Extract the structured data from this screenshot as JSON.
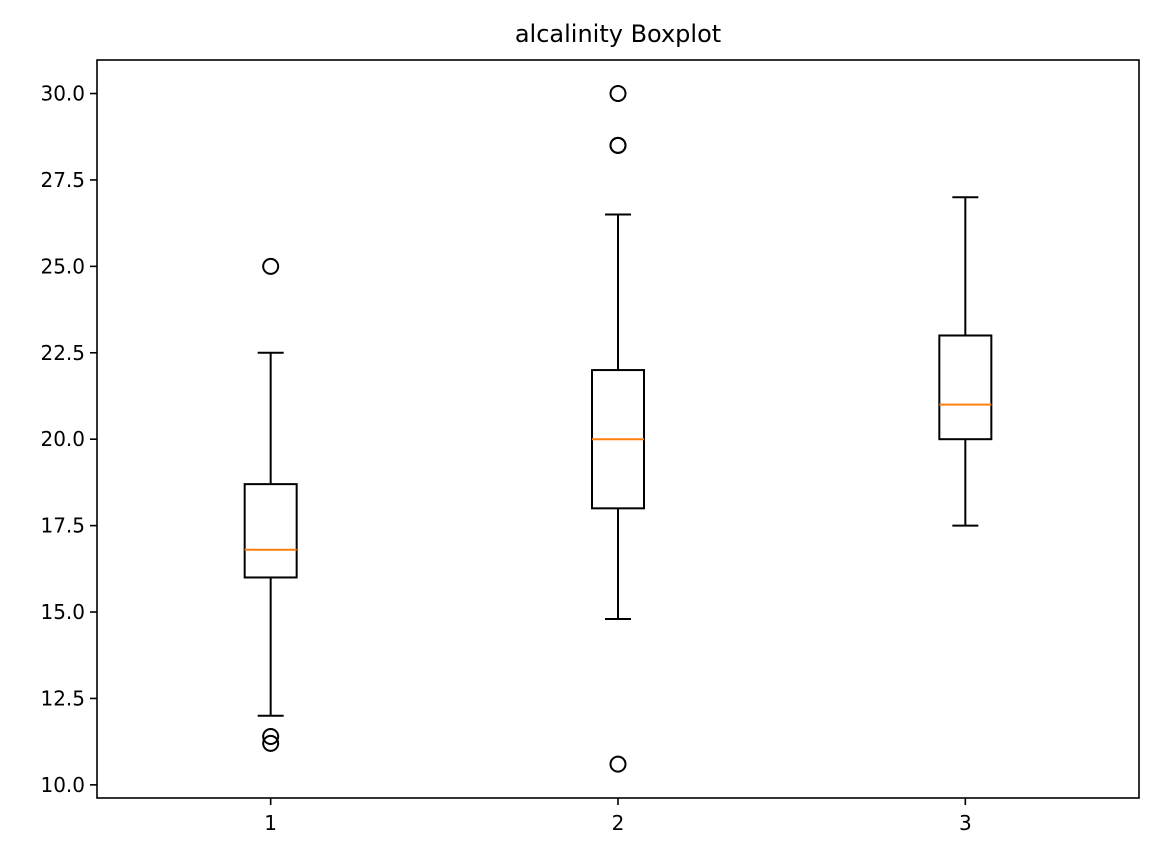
{
  "chart_data": {
    "type": "boxplot",
    "title": "alcalinity Boxplot",
    "xlabel": "",
    "ylabel": "",
    "categories": [
      "1",
      "2",
      "3"
    ],
    "y_ticks": [
      "10.0",
      "12.5",
      "15.0",
      "17.5",
      "20.0",
      "22.5",
      "25.0",
      "27.5",
      "30.0"
    ],
    "ylim": [
      9.62,
      30.97
    ],
    "grid": false,
    "boxes": [
      {
        "label": "1",
        "whisker_low": 12.0,
        "q1": 16.0,
        "median": 16.8,
        "q3": 18.7,
        "whisker_high": 22.5,
        "outliers": [
          25.0,
          11.4,
          11.2
        ]
      },
      {
        "label": "2",
        "whisker_low": 14.8,
        "q1": 18.0,
        "median": 20.0,
        "q3": 22.0,
        "whisker_high": 26.5,
        "outliers": [
          30.0,
          28.5,
          28.5,
          10.6
        ]
      },
      {
        "label": "3",
        "whisker_low": 17.5,
        "q1": 20.0,
        "median": 21.0,
        "q3": 23.0,
        "whisker_high": 27.0,
        "outliers": []
      }
    ],
    "colors": {
      "box": "#000000",
      "median": "#ff7f0e"
    }
  }
}
